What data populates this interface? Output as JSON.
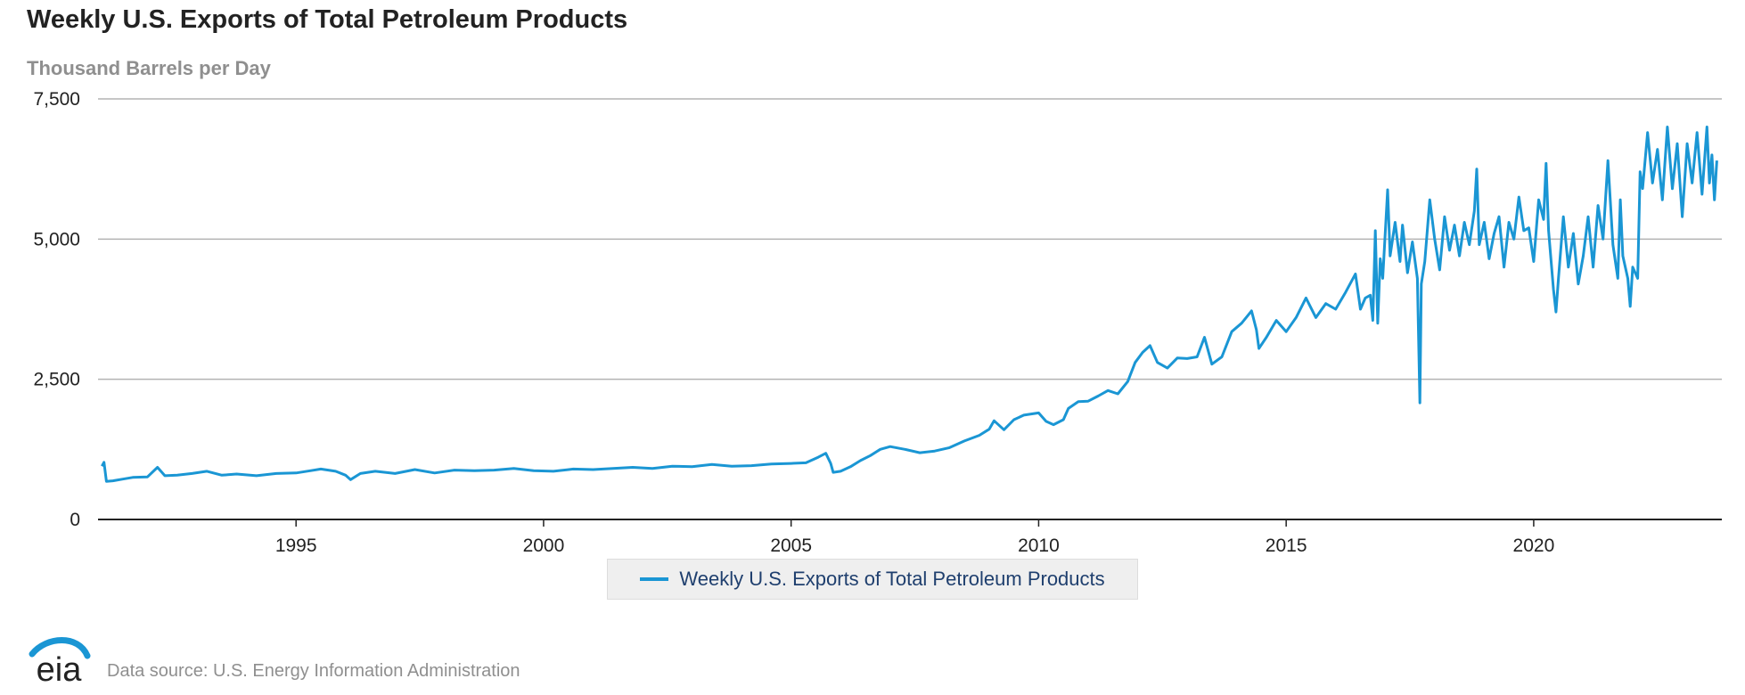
{
  "title": "Weekly U.S. Exports of Total Petroleum Products",
  "subtitle": "Thousand Barrels per Day",
  "source": "Data source: U.S. Energy Information Administration",
  "logo_text": "eia",
  "colors": {
    "series": "#1a96d4",
    "grid": "#b3b3b3",
    "axis": "#222222",
    "legend_bg": "#efefef"
  },
  "chart_data": {
    "type": "line",
    "title": "Weekly U.S. Exports of Total Petroleum Products",
    "ylabel": "Thousand Barrels per Day",
    "xlabel": "",
    "x_ticks": [
      "1995",
      "2000",
      "2005",
      "2010",
      "2015",
      "2020"
    ],
    "y_ticks": [
      "0",
      "2,500",
      "5,000",
      "7,500"
    ],
    "xlim": [
      1991.0,
      2023.8
    ],
    "ylim": [
      0,
      7500
    ],
    "grid": true,
    "legend_position": "bottom-center",
    "series": [
      {
        "name": "Weekly U.S. Exports of Total Petroleum Products",
        "points": [
          [
            1991.08,
            950
          ],
          [
            1991.12,
            1020
          ],
          [
            1991.17,
            680
          ],
          [
            1991.3,
            690
          ],
          [
            1991.5,
            720
          ],
          [
            1991.7,
            750
          ],
          [
            1992.0,
            760
          ],
          [
            1992.2,
            930
          ],
          [
            1992.35,
            780
          ],
          [
            1992.6,
            790
          ],
          [
            1992.9,
            820
          ],
          [
            1993.2,
            860
          ],
          [
            1993.5,
            790
          ],
          [
            1993.8,
            810
          ],
          [
            1994.2,
            780
          ],
          [
            1994.6,
            820
          ],
          [
            1995.0,
            830
          ],
          [
            1995.3,
            870
          ],
          [
            1995.5,
            900
          ],
          [
            1995.8,
            860
          ],
          [
            1996.0,
            790
          ],
          [
            1996.1,
            710
          ],
          [
            1996.3,
            820
          ],
          [
            1996.6,
            860
          ],
          [
            1997.0,
            820
          ],
          [
            1997.4,
            890
          ],
          [
            1997.8,
            830
          ],
          [
            1998.2,
            880
          ],
          [
            1998.6,
            870
          ],
          [
            1999.0,
            880
          ],
          [
            1999.4,
            910
          ],
          [
            1999.8,
            870
          ],
          [
            2000.2,
            860
          ],
          [
            2000.6,
            900
          ],
          [
            2001.0,
            890
          ],
          [
            2001.4,
            910
          ],
          [
            2001.8,
            930
          ],
          [
            2002.2,
            910
          ],
          [
            2002.6,
            950
          ],
          [
            2003.0,
            940
          ],
          [
            2003.4,
            980
          ],
          [
            2003.8,
            950
          ],
          [
            2004.2,
            960
          ],
          [
            2004.6,
            990
          ],
          [
            2005.0,
            1000
          ],
          [
            2005.3,
            1010
          ],
          [
            2005.55,
            1110
          ],
          [
            2005.7,
            1180
          ],
          [
            2005.8,
            1000
          ],
          [
            2005.85,
            840
          ],
          [
            2006.0,
            860
          ],
          [
            2006.2,
            940
          ],
          [
            2006.4,
            1050
          ],
          [
            2006.6,
            1140
          ],
          [
            2006.8,
            1250
          ],
          [
            2007.0,
            1300
          ],
          [
            2007.3,
            1250
          ],
          [
            2007.6,
            1190
          ],
          [
            2007.9,
            1220
          ],
          [
            2008.2,
            1280
          ],
          [
            2008.5,
            1400
          ],
          [
            2008.8,
            1500
          ],
          [
            2009.0,
            1610
          ],
          [
            2009.1,
            1760
          ],
          [
            2009.3,
            1600
          ],
          [
            2009.5,
            1780
          ],
          [
            2009.7,
            1860
          ],
          [
            2010.0,
            1900
          ],
          [
            2010.15,
            1750
          ],
          [
            2010.3,
            1690
          ],
          [
            2010.5,
            1780
          ],
          [
            2010.6,
            1980
          ],
          [
            2010.8,
            2100
          ],
          [
            2011.0,
            2110
          ],
          [
            2011.2,
            2200
          ],
          [
            2011.4,
            2300
          ],
          [
            2011.6,
            2240
          ],
          [
            2011.8,
            2460
          ],
          [
            2011.95,
            2800
          ],
          [
            2012.1,
            2980
          ],
          [
            2012.25,
            3100
          ],
          [
            2012.4,
            2800
          ],
          [
            2012.6,
            2700
          ],
          [
            2012.8,
            2880
          ],
          [
            2013.0,
            2870
          ],
          [
            2013.2,
            2900
          ],
          [
            2013.35,
            3250
          ],
          [
            2013.5,
            2770
          ],
          [
            2013.7,
            2900
          ],
          [
            2013.9,
            3350
          ],
          [
            2014.1,
            3500
          ],
          [
            2014.3,
            3720
          ],
          [
            2014.4,
            3380
          ],
          [
            2014.45,
            3050
          ],
          [
            2014.6,
            3250
          ],
          [
            2014.8,
            3550
          ],
          [
            2015.0,
            3350
          ],
          [
            2015.2,
            3600
          ],
          [
            2015.4,
            3950
          ],
          [
            2015.6,
            3600
          ],
          [
            2015.8,
            3850
          ],
          [
            2016.0,
            3750
          ],
          [
            2016.2,
            4050
          ],
          [
            2016.4,
            4380
          ],
          [
            2016.5,
            3750
          ],
          [
            2016.6,
            3950
          ],
          [
            2016.7,
            4000
          ],
          [
            2016.75,
            3550
          ],
          [
            2016.8,
            5150
          ],
          [
            2016.85,
            3500
          ],
          [
            2016.9,
            4650
          ],
          [
            2016.95,
            4300
          ],
          [
            2017.0,
            5100
          ],
          [
            2017.05,
            5880
          ],
          [
            2017.1,
            4700
          ],
          [
            2017.2,
            5300
          ],
          [
            2017.3,
            4600
          ],
          [
            2017.35,
            5250
          ],
          [
            2017.45,
            4400
          ],
          [
            2017.55,
            4950
          ],
          [
            2017.65,
            4300
          ],
          [
            2017.7,
            2080
          ],
          [
            2017.73,
            4200
          ],
          [
            2017.8,
            4600
          ],
          [
            2017.9,
            5700
          ],
          [
            2018.0,
            5000
          ],
          [
            2018.1,
            4450
          ],
          [
            2018.2,
            5400
          ],
          [
            2018.3,
            4800
          ],
          [
            2018.4,
            5250
          ],
          [
            2018.5,
            4700
          ],
          [
            2018.6,
            5300
          ],
          [
            2018.7,
            4900
          ],
          [
            2018.8,
            5500
          ],
          [
            2018.85,
            6250
          ],
          [
            2018.9,
            4900
          ],
          [
            2019.0,
            5300
          ],
          [
            2019.1,
            4650
          ],
          [
            2019.2,
            5100
          ],
          [
            2019.3,
            5400
          ],
          [
            2019.4,
            4500
          ],
          [
            2019.5,
            5300
          ],
          [
            2019.6,
            5000
          ],
          [
            2019.7,
            5750
          ],
          [
            2019.8,
            5150
          ],
          [
            2019.9,
            5200
          ],
          [
            2020.0,
            4600
          ],
          [
            2020.1,
            5700
          ],
          [
            2020.2,
            5350
          ],
          [
            2020.25,
            6350
          ],
          [
            2020.3,
            5150
          ],
          [
            2020.4,
            4100
          ],
          [
            2020.45,
            3700
          ],
          [
            2020.5,
            4300
          ],
          [
            2020.6,
            5400
          ],
          [
            2020.7,
            4500
          ],
          [
            2020.8,
            5100
          ],
          [
            2020.9,
            4200
          ],
          [
            2021.0,
            4700
          ],
          [
            2021.1,
            5400
          ],
          [
            2021.2,
            4500
          ],
          [
            2021.3,
            5600
          ],
          [
            2021.4,
            5000
          ],
          [
            2021.5,
            6400
          ],
          [
            2021.6,
            4900
          ],
          [
            2021.7,
            4300
          ],
          [
            2021.75,
            5700
          ],
          [
            2021.8,
            4700
          ],
          [
            2021.9,
            4300
          ],
          [
            2021.95,
            3800
          ],
          [
            2022.0,
            4500
          ],
          [
            2022.1,
            4300
          ],
          [
            2022.15,
            6200
          ],
          [
            2022.2,
            5900
          ],
          [
            2022.3,
            6900
          ],
          [
            2022.4,
            6000
          ],
          [
            2022.5,
            6600
          ],
          [
            2022.6,
            5700
          ],
          [
            2022.7,
            7000
          ],
          [
            2022.8,
            5900
          ],
          [
            2022.9,
            6700
          ],
          [
            2023.0,
            5400
          ],
          [
            2023.1,
            6700
          ],
          [
            2023.2,
            6000
          ],
          [
            2023.3,
            6900
          ],
          [
            2023.4,
            5800
          ],
          [
            2023.5,
            7000
          ],
          [
            2023.55,
            6000
          ],
          [
            2023.6,
            6500
          ],
          [
            2023.65,
            5700
          ],
          [
            2023.7,
            6400
          ]
        ]
      }
    ]
  }
}
